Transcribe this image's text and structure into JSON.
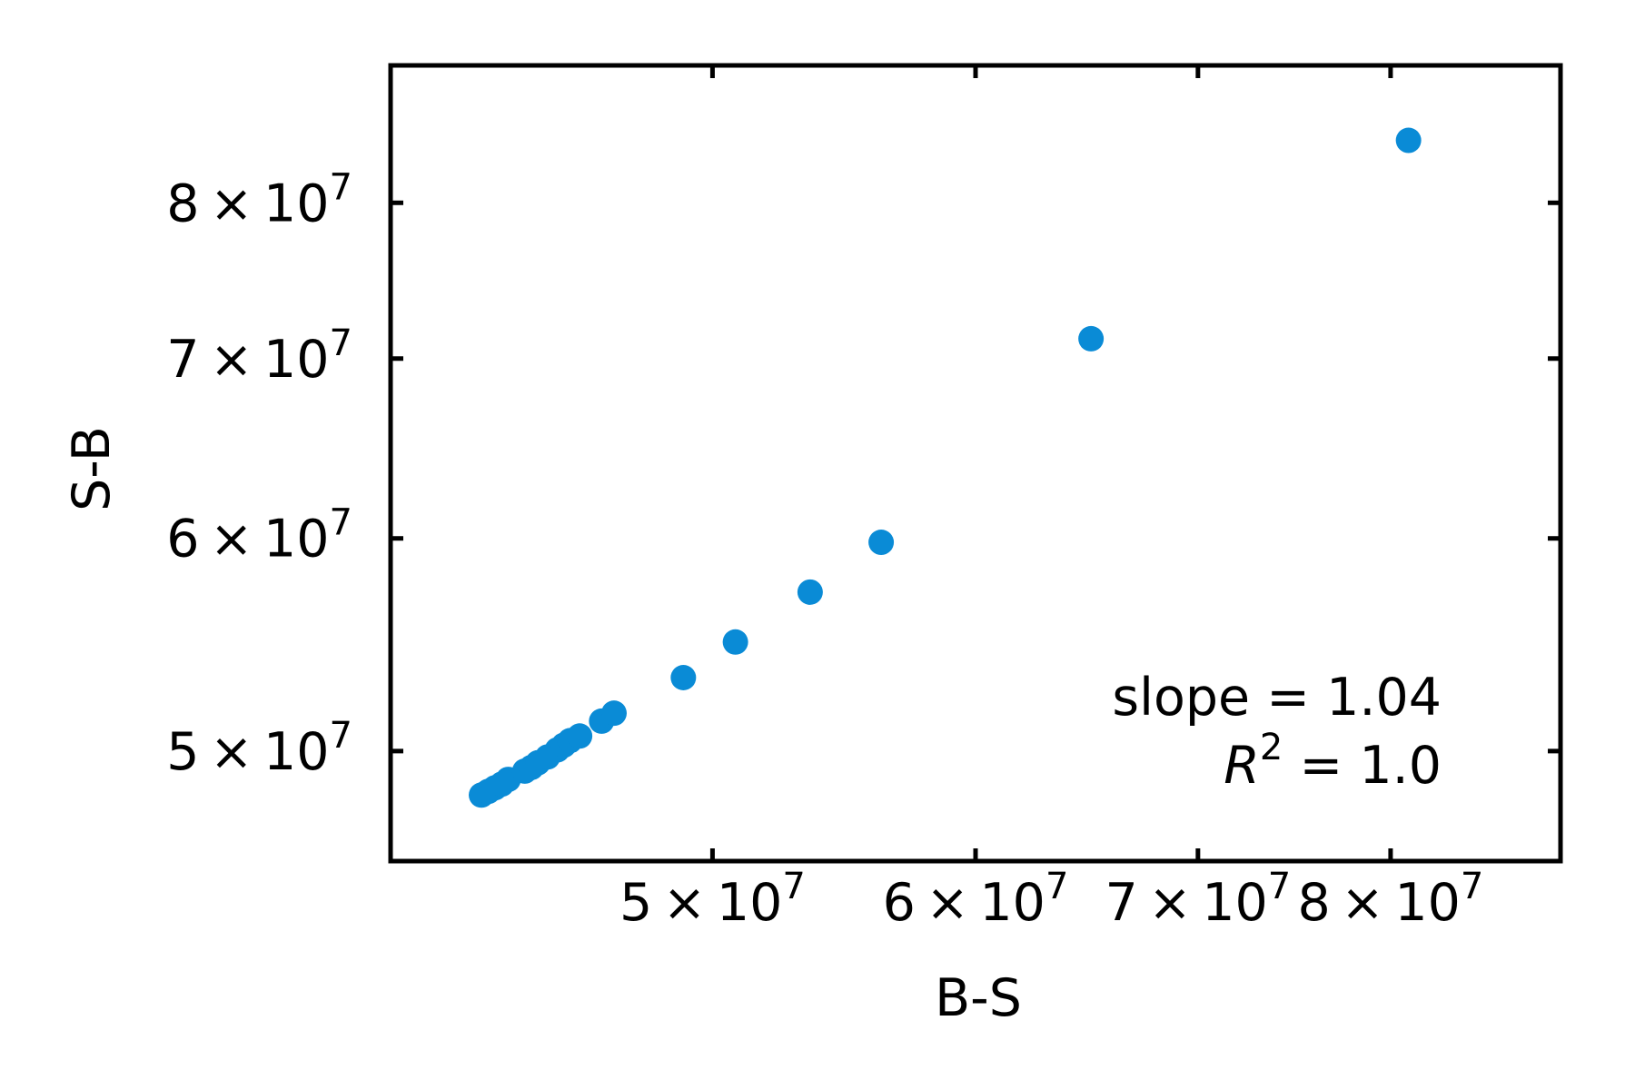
{
  "chart_data": {
    "type": "scatter",
    "scale": "log",
    "xlabel": "B-S",
    "ylabel": "S-B",
    "xlim": [
      40000000,
      90000000
    ],
    "ylim": [
      45500000,
      90000000
    ],
    "xticks": [
      {
        "value": 50000000,
        "mantissa": "5",
        "base": "10",
        "exponent": "7"
      },
      {
        "value": 60000000,
        "mantissa": "6",
        "base": "10",
        "exponent": "7"
      },
      {
        "value": 70000000,
        "mantissa": "7",
        "base": "10",
        "exponent": "7"
      },
      {
        "value": 80000000,
        "mantissa": "8",
        "base": "10",
        "exponent": "7"
      }
    ],
    "yticks": [
      {
        "value": 50000000,
        "mantissa": "5",
        "base": "10",
        "exponent": "7"
      },
      {
        "value": 60000000,
        "mantissa": "6",
        "base": "10",
        "exponent": "7"
      },
      {
        "value": 70000000,
        "mantissa": "7",
        "base": "10",
        "exponent": "7"
      },
      {
        "value": 80000000,
        "mantissa": "8",
        "base": "10",
        "exponent": "7"
      }
    ],
    "times_symbol": "×",
    "annotation": {
      "slope_text": "slope = 1.04",
      "r2_symbol": "R",
      "r2_exponent": "2",
      "r2_value_text": " = 1.0"
    },
    "marker_color": "#0a8bd6",
    "grid": false,
    "points": [
      {
        "x": 42600000,
        "y": 48150000
      },
      {
        "x": 42800000,
        "y": 48300000
      },
      {
        "x": 43000000,
        "y": 48450000
      },
      {
        "x": 43200000,
        "y": 48600000
      },
      {
        "x": 43400000,
        "y": 48800000
      },
      {
        "x": 43900000,
        "y": 49150000
      },
      {
        "x": 44100000,
        "y": 49300000
      },
      {
        "x": 44300000,
        "y": 49500000
      },
      {
        "x": 44600000,
        "y": 49750000
      },
      {
        "x": 44900000,
        "y": 50050000
      },
      {
        "x": 45100000,
        "y": 50250000
      },
      {
        "x": 45300000,
        "y": 50450000
      },
      {
        "x": 45600000,
        "y": 50650000
      },
      {
        "x": 46300000,
        "y": 51300000
      },
      {
        "x": 46700000,
        "y": 51650000
      },
      {
        "x": 49000000,
        "y": 53250000
      },
      {
        "x": 50800000,
        "y": 54900000
      },
      {
        "x": 53500000,
        "y": 57300000
      },
      {
        "x": 56200000,
        "y": 59800000
      },
      {
        "x": 65000000,
        "y": 71200000
      },
      {
        "x": 81000000,
        "y": 84400000
      }
    ]
  }
}
